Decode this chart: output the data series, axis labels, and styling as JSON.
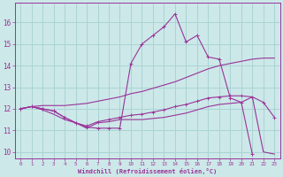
{
  "x": [
    0,
    1,
    2,
    3,
    4,
    5,
    6,
    7,
    8,
    9,
    10,
    11,
    12,
    13,
    14,
    15,
    16,
    17,
    18,
    19,
    20,
    21,
    22,
    23
  ],
  "line_spiky": [
    12.0,
    12.1,
    12.0,
    11.9,
    11.6,
    11.35,
    11.15,
    11.1,
    11.1,
    11.1,
    14.1,
    15.0,
    15.4,
    15.8,
    16.4,
    15.1,
    15.4,
    14.4,
    14.3,
    12.5,
    12.3,
    9.9,
    null,
    null
  ],
  "line_spiky_x": [
    0,
    1,
    2,
    3,
    4,
    5,
    6,
    7,
    8,
    9,
    10,
    11,
    12,
    13,
    14,
    15,
    16,
    17,
    18,
    19,
    20,
    21
  ],
  "line_spiky_y": [
    12.0,
    12.1,
    12.0,
    11.9,
    11.6,
    11.35,
    11.15,
    11.1,
    11.1,
    11.1,
    14.1,
    15.0,
    15.4,
    15.8,
    16.4,
    15.1,
    15.4,
    14.4,
    14.3,
    12.5,
    12.3,
    9.9
  ],
  "line_bottom_x": [
    0,
    1,
    2,
    3,
    4,
    5,
    6,
    7,
    8,
    9,
    10,
    11,
    12,
    13,
    14,
    15,
    16,
    17,
    18,
    19,
    20,
    21,
    22,
    23
  ],
  "line_bottom_y": [
    12.0,
    12.1,
    11.95,
    11.75,
    11.5,
    11.35,
    11.1,
    11.35,
    11.4,
    11.5,
    11.5,
    11.5,
    11.55,
    11.6,
    11.7,
    11.8,
    11.95,
    12.1,
    12.2,
    12.25,
    12.3,
    12.55,
    10.0,
    9.9
  ],
  "line_middle_x": [
    0,
    1,
    2,
    3,
    4,
    5,
    6,
    7,
    8,
    9,
    10,
    11,
    12,
    13,
    14,
    15,
    16,
    17,
    18,
    19,
    20,
    21,
    22,
    23
  ],
  "line_middle_y": [
    12.0,
    12.1,
    12.0,
    11.9,
    11.6,
    11.35,
    11.2,
    11.4,
    11.5,
    11.6,
    11.7,
    11.75,
    11.85,
    11.95,
    12.1,
    12.2,
    12.35,
    12.5,
    12.55,
    12.6,
    12.6,
    12.55,
    12.3,
    11.6
  ],
  "line_diag_x": [
    0,
    1,
    2,
    3,
    4,
    5,
    6,
    7,
    8,
    9,
    10,
    11,
    12,
    13,
    14,
    15,
    16,
    17,
    18,
    19,
    20,
    21,
    22,
    23
  ],
  "line_diag_y": [
    12.0,
    12.1,
    12.15,
    12.15,
    12.15,
    12.2,
    12.25,
    12.35,
    12.45,
    12.55,
    12.7,
    12.8,
    12.95,
    13.1,
    13.25,
    13.45,
    13.65,
    13.85,
    14.0,
    14.1,
    14.2,
    14.3,
    14.35,
    14.35
  ],
  "color": "#993399",
  "bg_color": "#cce8e8",
  "grid_color": "#aad4d4",
  "xlabel": "Windchill (Refroidissement éolien,°C)",
  "ylim": [
    9.7,
    16.9
  ],
  "xlim": [
    -0.5,
    23.5
  ],
  "yticks": [
    10,
    11,
    12,
    13,
    14,
    15,
    16
  ],
  "xticks": [
    0,
    1,
    2,
    3,
    4,
    5,
    6,
    7,
    8,
    9,
    10,
    11,
    12,
    13,
    14,
    15,
    16,
    17,
    18,
    19,
    20,
    21,
    22,
    23
  ]
}
